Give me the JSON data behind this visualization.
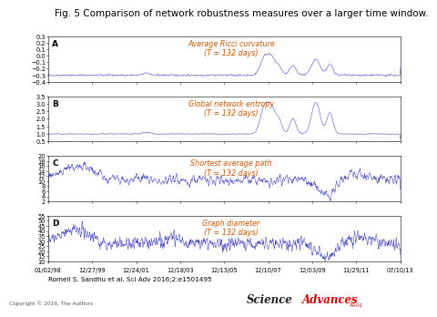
{
  "title": "Fig. 5 Comparison of network robustness measures over a larger time window.",
  "title_fontsize": 7.5,
  "panels": [
    {
      "label": "A",
      "annotation_lines": [
        "Average Ricci curvature",
        "(T = 132 days)"
      ],
      "ylim": [
        -0.4,
        0.3
      ],
      "yticks": [
        -0.4,
        -0.3,
        -0.2,
        -0.1,
        0.0,
        0.1,
        0.2,
        0.3
      ]
    },
    {
      "label": "B",
      "annotation_lines": [
        "Global network entropy",
        "(T = 132 days)"
      ],
      "ylim": [
        0.5,
        3.5
      ],
      "yticks": [
        0.5,
        1.0,
        1.5,
        2.0,
        2.5,
        3.0,
        3.5
      ]
    },
    {
      "label": "C",
      "annotation_lines": [
        "Shortest average path",
        "(T = 132 days)"
      ],
      "ylim": [
        2,
        20
      ],
      "yticks": [
        2,
        4,
        6,
        8,
        10,
        12,
        14,
        16,
        18,
        20
      ]
    },
    {
      "label": "D",
      "annotation_lines": [
        "Graph diameter",
        "(T = 132 days)"
      ],
      "ylim": [
        10,
        55
      ],
      "yticks": [
        10,
        15,
        20,
        25,
        30,
        35,
        40,
        45,
        50,
        55
      ]
    }
  ],
  "xtick_labels": [
    "01/02/98",
    "12/27/99",
    "12/24/01",
    "12/18/03",
    "12/13/05",
    "12/10/07",
    "12/03/09",
    "11/29/11",
    "07/10/13"
  ],
  "n_points": 1200,
  "line_color": "#3030bb",
  "annotation_color": "#cc5500",
  "label_fontsize": 6.5,
  "annotation_fontsize": 5.8,
  "tick_fontsize": 4.8,
  "background_color": "#ffffff",
  "citation": "Romeil S. Sandhu et al. Sci Adv 2016;2:e1501495",
  "copyright": "Copyright © 2016, The Authors",
  "sci_color": "#333333",
  "adv_color": "#cc0000"
}
